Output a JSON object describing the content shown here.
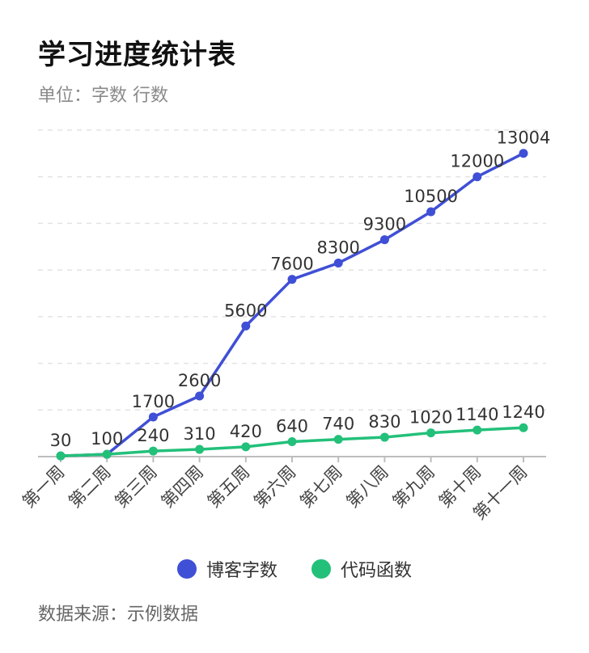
{
  "title": "学习进度统计表",
  "subtitle": "单位：字数 行数",
  "source": "数据来源：示例数据",
  "colors": {
    "blog": "#3f4fd6",
    "code": "#23c07a",
    "grid": "#e3e3e3",
    "axis": "#bdbdbd"
  },
  "chart_data": {
    "type": "line",
    "categories": [
      "第一周",
      "第二周",
      "第三周",
      "第四周",
      "第五周",
      "第六周",
      "第七周",
      "第八周",
      "第九周",
      "第十周",
      "第十一周"
    ],
    "series": [
      {
        "name": "博客字数",
        "values": [
          30,
          100,
          1700,
          2600,
          5600,
          7600,
          8300,
          9300,
          10500,
          12000,
          13004
        ]
      },
      {
        "name": "代码函数",
        "values": [
          30,
          100,
          240,
          310,
          420,
          640,
          740,
          830,
          1020,
          1140,
          1240
        ]
      }
    ],
    "ylim": [
      0,
      14000
    ],
    "grid": true,
    "legend": "bottom"
  }
}
